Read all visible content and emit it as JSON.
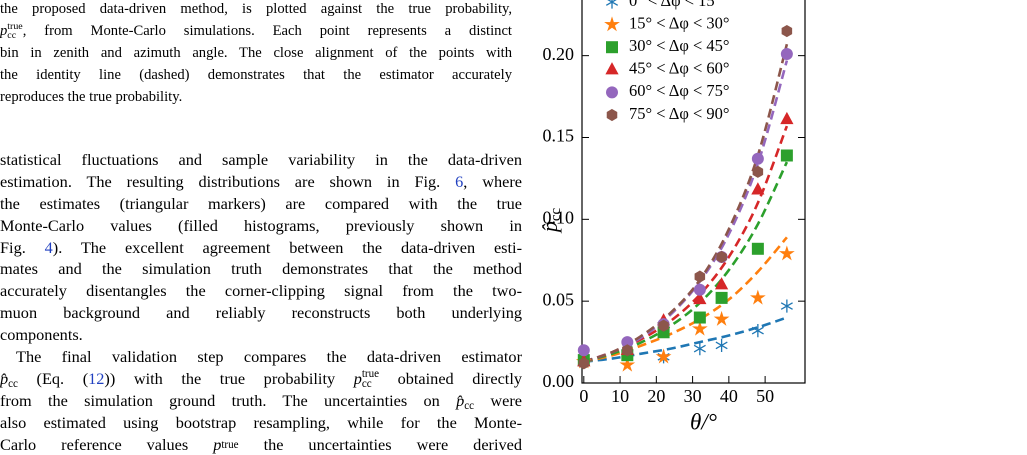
{
  "caption_lines": [
    [
      "the proposed data-driven method, is plotted against the true probability,"
    ],
    [
      {
        "base": "p",
        "sub": "cc",
        "sup": "true"
      },
      ", from Monte-Carlo simulations. Each point represents a distinct"
    ],
    [
      "bin in zenith and azimuth angle. The close alignment of the points with"
    ],
    [
      "the identity line (dashed) demonstrates that the estimator accurately"
    ],
    [
      "reproduces the true probability."
    ]
  ],
  "body": [
    [
      [
        "statistical fluctuations and sample variability in the data-driven"
      ],
      [
        "estimation. The resulting distributions are shown in Fig. ",
        {
          "ref": "6"
        },
        ", where"
      ],
      [
        "the estimates (triangular markers) are compared with the true"
      ],
      [
        "Monte-Carlo values (filled histograms, previously shown in"
      ],
      [
        "Fig. ",
        {
          "ref": "4"
        },
        "). The excellent agreement between the data-driven esti-"
      ],
      [
        "mates and the simulation truth demonstrates that the method"
      ],
      [
        "accurately disentangles the corner-clipping signal from the two-"
      ],
      [
        "muon background and reliably reconstructs both underlying"
      ],
      [
        "components."
      ]
    ],
    [
      [
        "The final validation step compares the data-driven estimator"
      ],
      [
        {
          "base": "p̂",
          "sub": "cc"
        },
        " (Eq. (",
        {
          "ref": "12"
        },
        ")) with the true probability ",
        {
          "base": "p",
          "sub": "cc",
          "sup": "true"
        },
        " obtained directly"
      ],
      [
        "from the simulation ground truth. The uncertainties on ",
        {
          "base": "p̂",
          "sub": "cc"
        },
        " were"
      ],
      [
        "also estimated using bootstrap resampling, while for the Monte-"
      ],
      [
        "Carlo reference values ",
        {
          "base": "p",
          "sup": "true"
        },
        " the uncertainties were derived"
      ]
    ]
  ],
  "chart_data": {
    "type": "scatter",
    "x_label": "θ/°",
    "y_label": {
      "base": "p̂",
      "sub": "cc"
    },
    "xlim": [
      -0.5,
      61
    ],
    "ylim": [
      0,
      0.234
    ],
    "xticks": [
      0,
      10,
      20,
      30,
      40,
      50
    ],
    "yticks": [
      {
        "value": 0,
        "label": "0.00"
      },
      {
        "value": 0.05,
        "label": "0.05"
      },
      {
        "value": 0.1,
        "label": "0.10"
      },
      {
        "value": 0.15,
        "label": "0.15"
      },
      {
        "value": 0.2,
        "label": "0.20"
      }
    ],
    "x": [
      0,
      12,
      22,
      32,
      38,
      48,
      56
    ],
    "fit_x": [
      0,
      8,
      16,
      24,
      32,
      40,
      48,
      56
    ],
    "series": [
      {
        "name": "0° < Δφ < 15°",
        "color": "#1f77b4",
        "marker": "asterisk",
        "values": [
          0.013,
          0.018,
          0.016,
          0.021,
          0.023,
          0.032,
          0.047
        ],
        "fit": [
          0.013,
          0.015,
          0.018,
          0.021,
          0.025,
          0.029,
          0.034,
          0.04
        ]
      },
      {
        "name": "15° < Δφ < 30°",
        "color": "#ff7f0e",
        "marker": "star",
        "values": [
          0.013,
          0.011,
          0.016,
          0.033,
          0.039,
          0.052,
          0.079
        ],
        "fit": [
          0.013,
          0.017,
          0.023,
          0.03,
          0.039,
          0.051,
          0.068,
          0.089
        ]
      },
      {
        "name": "30° < Δφ < 45°",
        "color": "#2ca02c",
        "marker": "square",
        "values": [
          0.014,
          0.017,
          0.031,
          0.04,
          0.052,
          0.082,
          0.139
        ],
        "fit": [
          0.013,
          0.018,
          0.025,
          0.035,
          0.049,
          0.069,
          0.097,
          0.135
        ]
      },
      {
        "name": "45° < Δφ < 60°",
        "color": "#d62728",
        "marker": "triangle",
        "values": [
          0.013,
          0.02,
          0.038,
          0.051,
          0.06,
          0.118,
          0.161
        ],
        "fit": [
          0.013,
          0.019,
          0.027,
          0.038,
          0.054,
          0.077,
          0.11,
          0.157
        ]
      },
      {
        "name": "60° < Δφ < 75°",
        "color": "#9467bd",
        "marker": "circle",
        "values": [
          0.02,
          0.025,
          0.036,
          0.057,
          0.077,
          0.137,
          0.201
        ],
        "fit": [
          0.013,
          0.019,
          0.028,
          0.042,
          0.062,
          0.091,
          0.134,
          0.197
        ]
      },
      {
        "name": "75° < Δφ < 90°",
        "color": "#8c564b",
        "marker": "hexagon",
        "values": [
          0.012,
          0.02,
          0.035,
          0.065,
          0.077,
          0.129,
          0.215
        ],
        "fit": [
          0.013,
          0.019,
          0.029,
          0.043,
          0.063,
          0.094,
          0.139,
          0.207
        ]
      }
    ]
  }
}
